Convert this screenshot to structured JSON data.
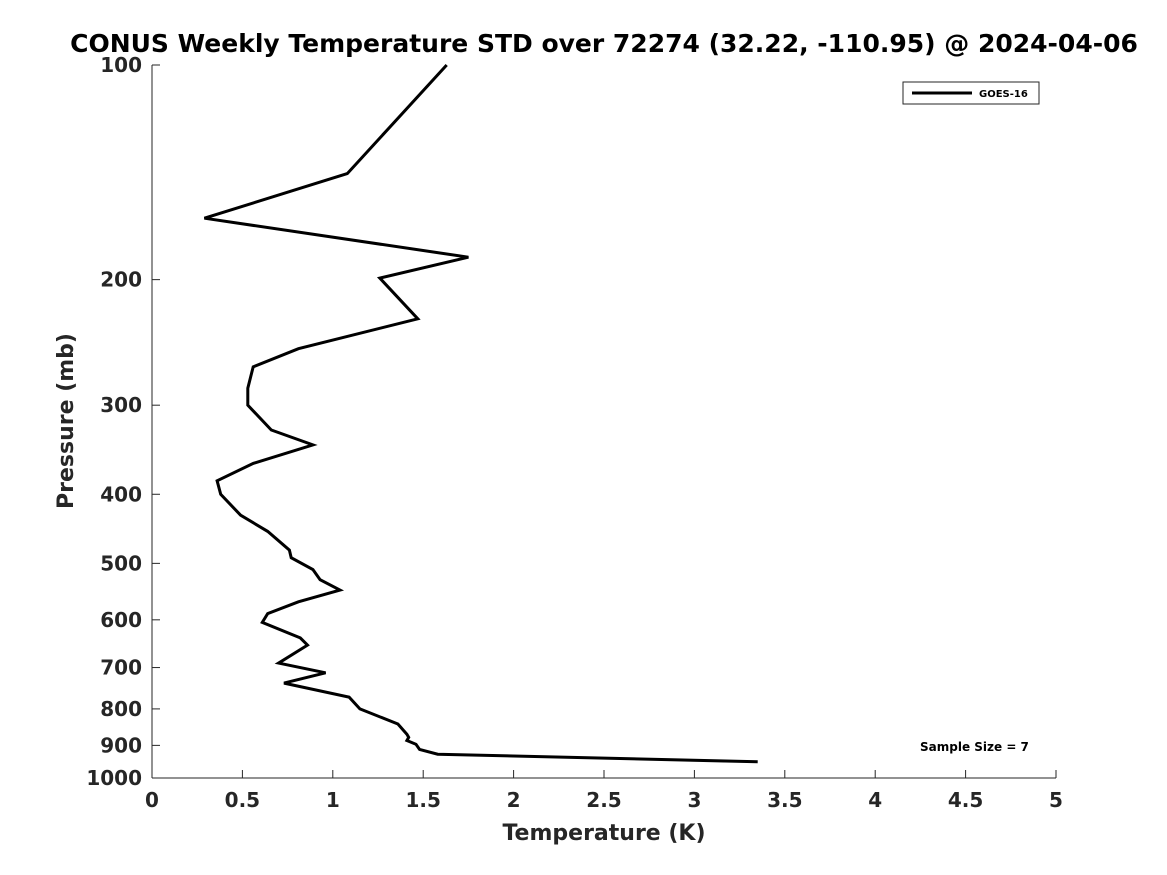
{
  "chart_data": {
    "type": "line",
    "title": "CONUS Weekly Temperature STD over 72274 (32.22, -110.95) @ 2024-04-06",
    "xlabel": "Temperature (K)",
    "ylabel": "Pressure (mb)",
    "xlim": [
      0,
      5
    ],
    "ylim": [
      100,
      1000
    ],
    "yscale": "log",
    "y_reversed": true,
    "xticks": [
      0,
      0.5,
      1,
      1.5,
      2,
      2.5,
      3,
      3.5,
      4,
      4.5,
      5
    ],
    "xtick_labels": [
      "0",
      "0.5",
      "1",
      "1.5",
      "2",
      "2.5",
      "3",
      "3.5",
      "4",
      "4.5",
      "5"
    ],
    "yticks": [
      100,
      200,
      300,
      400,
      500,
      600,
      700,
      800,
      900,
      1000
    ],
    "ytick_labels": [
      "100",
      "200",
      "300",
      "400",
      "500",
      "600",
      "700",
      "800",
      "900",
      "1000"
    ],
    "grid": false,
    "legend_position": "top-right",
    "series": [
      {
        "name": "GOES-16",
        "color": "#000000",
        "x": [
          1.63,
          1.08,
          0.29,
          1.75,
          1.26,
          1.47,
          0.81,
          0.56,
          0.53,
          0.53,
          0.66,
          0.89,
          0.56,
          0.36,
          0.38,
          0.49,
          0.64,
          0.76,
          0.77,
          0.89,
          0.93,
          1.04,
          0.81,
          0.64,
          0.61,
          0.82,
          0.86,
          0.7,
          0.96,
          0.73,
          1.09,
          1.15,
          1.36,
          1.41,
          1.42,
          1.41,
          1.46,
          1.48,
          1.58,
          3.35
        ],
        "y": [
          100,
          142,
          164,
          186,
          199,
          227,
          250,
          265,
          284,
          300,
          325,
          341,
          362,
          383,
          400,
          428,
          451,
          479,
          491,
          510,
          527,
          545,
          566,
          588,
          605,
          636,
          651,
          690,
          712,
          736,
          770,
          800,
          840,
          868,
          877,
          886,
          897,
          912,
          926,
          949
        ]
      }
    ],
    "annotations": [
      {
        "text": "Sample Size = 7"
      }
    ]
  }
}
